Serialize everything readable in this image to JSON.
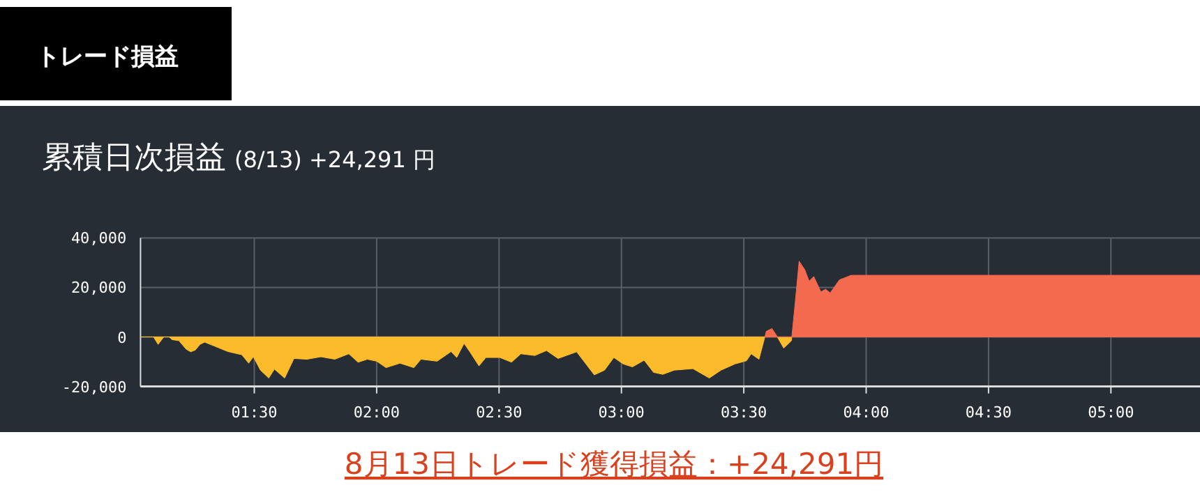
{
  "chart_data": {
    "type": "area",
    "title": "累積日次損益",
    "subtitle": "(8/13) +24,291 円",
    "annotations": [
      "トレード損益",
      "8月13日トレード獲得損益：+24,291円"
    ],
    "xlim": [
      1.035,
      5.364
    ],
    "ylim": [
      -20000,
      40000
    ],
    "xticks": [
      {
        "value": 1.5,
        "label": "01:30"
      },
      {
        "value": 2.0,
        "label": "02:00"
      },
      {
        "value": 2.5,
        "label": "02:30"
      },
      {
        "value": 3.0,
        "label": "03:00"
      },
      {
        "value": 3.5,
        "label": "03:30"
      },
      {
        "value": 4.0,
        "label": "04:00"
      },
      {
        "value": 4.5,
        "label": "04:30"
      },
      {
        "value": 5.0,
        "label": "05:00"
      }
    ],
    "yticks": [
      {
        "value": -20000,
        "label": "-20,000"
      },
      {
        "value": 0,
        "label": "0"
      },
      {
        "value": 20000,
        "label": "20,000"
      },
      {
        "value": 40000,
        "label": "40,000"
      }
    ],
    "grid": true,
    "series": [
      {
        "color": "#fbbb2a",
        "x": [
          1.035,
          1.088,
          1.107,
          1.13,
          1.14,
          1.152,
          1.164,
          1.192,
          1.221,
          1.24,
          1.259,
          1.278,
          1.297,
          1.335,
          1.392,
          1.449,
          1.477,
          1.496,
          1.525,
          1.559,
          1.582,
          1.624,
          1.662,
          1.715,
          1.772,
          1.829,
          1.886,
          1.924,
          1.962,
          2.0,
          2.038,
          2.095,
          2.152,
          2.181,
          2.247,
          2.304,
          2.327,
          2.357,
          2.38,
          2.418,
          2.446,
          2.503,
          2.551,
          2.589,
          2.646,
          2.694,
          2.741,
          2.817,
          2.889,
          2.931,
          2.969,
          3.007,
          3.045,
          3.093,
          3.131,
          3.169,
          3.216,
          3.292,
          3.359,
          3.407,
          3.464,
          3.511,
          3.53,
          3.562,
          3.586,
          3.61,
          3.637,
          3.663,
          3.695,
          3.696
        ],
        "values": [
          0,
          0,
          -3000,
          0,
          0,
          0,
          -1100,
          -1500,
          -4900,
          -6000,
          -5300,
          -3000,
          -2100,
          -3600,
          -5900,
          -7200,
          -10600,
          -8000,
          -13400,
          -16600,
          -13000,
          -16600,
          -8700,
          -9000,
          -8000,
          -9000,
          -6800,
          -10200,
          -9000,
          -9800,
          -12400,
          -10600,
          -12400,
          -9000,
          -9800,
          -5900,
          -8300,
          -2600,
          -5900,
          -11700,
          -8300,
          -8300,
          -10200,
          -6800,
          -7500,
          -5500,
          -8700,
          -6000,
          -15300,
          -13400,
          -8300,
          -10900,
          -12100,
          -9400,
          -14300,
          -15100,
          -13400,
          -12800,
          -16600,
          -13400,
          -10900,
          -9600,
          -6800,
          -9000,
          0,
          0,
          0,
          -4500,
          -1500,
          0
        ]
      },
      {
        "color": "#f46a4e",
        "x": [
          3.586,
          3.592,
          3.615,
          3.635,
          3.637,
          3.66,
          3.696,
          3.71,
          3.726,
          3.749,
          3.767,
          3.786,
          3.815,
          3.834,
          3.853,
          3.891,
          3.91,
          3.938,
          5.364
        ],
        "values": [
          0,
          2300,
          3400,
          400,
          0,
          0,
          0,
          13900,
          30600,
          27200,
          22500,
          24400,
          18200,
          19300,
          17800,
          23100,
          23800,
          24900,
          24900
        ]
      }
    ]
  }
}
